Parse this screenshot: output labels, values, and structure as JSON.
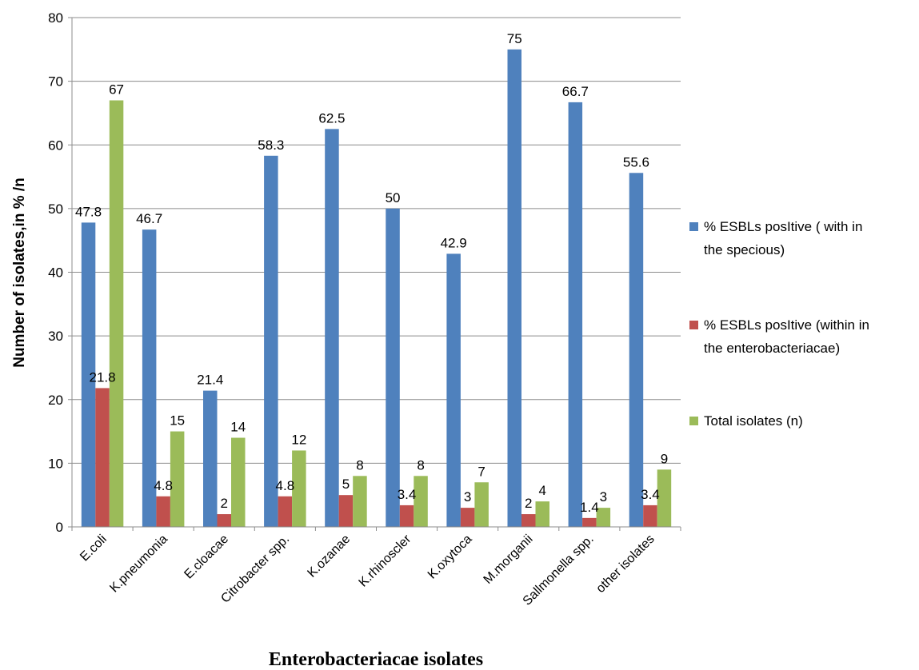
{
  "chart_data": {
    "type": "bar",
    "title": "",
    "xlabel": "Enterobacteriacae isolates",
    "ylabel": "Number of isolates,in % /n",
    "ylim": [
      0,
      80
    ],
    "yticks": [
      0,
      10,
      20,
      30,
      40,
      50,
      60,
      70,
      80
    ],
    "grid": true,
    "legend_position": "right",
    "categories": [
      "E.coli",
      "K.pneumonia",
      "E.cloacae",
      "Citrobacter spp.",
      "K.ozanae",
      "K.rhinoscler",
      "K.oxytoca",
      "M.morganii",
      "Sallmonella spp.",
      "other isolates"
    ],
    "series": [
      {
        "name": "% ESBLs posItive ( with in the specious)",
        "legend_lines": [
          "% ESBLs posItive ( with in",
          "the specious)"
        ],
        "color": "#4F81BD",
        "values": [
          47.8,
          46.7,
          21.4,
          58.3,
          62.5,
          50,
          42.9,
          75,
          66.7,
          55.6
        ],
        "labels": [
          "47.8",
          "46.7",
          "21.4",
          "58.3",
          "62.5",
          "50",
          "42.9",
          "75",
          "66.7",
          "55.6"
        ]
      },
      {
        "name": "% ESBLs posItive (within in the enterobacteriacae)",
        "legend_lines": [
          "% ESBLs posItive (within in",
          "the enterobacteriacae)"
        ],
        "color": "#C0504D",
        "values": [
          21.8,
          4.8,
          2,
          4.8,
          5,
          3.4,
          3,
          2,
          1.4,
          3.4
        ],
        "labels": [
          "21.8",
          "4.8",
          "2",
          "4.8",
          "5",
          "3.4",
          "3",
          "2",
          "1.4",
          "3.4"
        ]
      },
      {
        "name": "Total isolates (n)",
        "legend_lines": [
          "Total isolates (n)"
        ],
        "color": "#9BBB59",
        "values": [
          67,
          15,
          14,
          12,
          8,
          8,
          7,
          4,
          3,
          9
        ],
        "labels": [
          "67",
          "15",
          "14",
          "12",
          "8",
          "8",
          "7",
          "4",
          "3",
          "9"
        ]
      }
    ]
  }
}
